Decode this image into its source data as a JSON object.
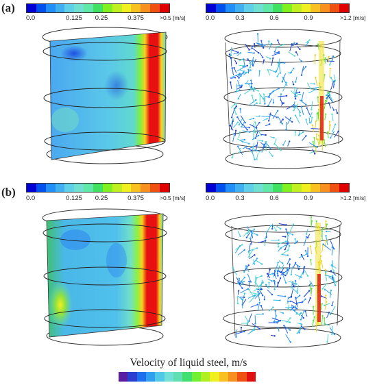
{
  "panels": [
    {
      "label": "(a)",
      "contour_scale": {
        "ticks": [
          "0.0",
          "0.125",
          "0.25",
          "0.375"
        ],
        "max_label": ">0.5",
        "unit": "[m/s]"
      },
      "vector_scale": {
        "ticks": [
          "0.0",
          "0.3",
          "0.6",
          "0.9"
        ],
        "max_label": ">1.2",
        "unit": "[m/s]"
      }
    },
    {
      "label": "(b)",
      "contour_scale": {
        "ticks": [
          "0.0",
          "0.125",
          "0.25",
          "0.375"
        ],
        "max_label": ">0.5",
        "unit": "[m/s]"
      },
      "vector_scale": {
        "ticks": [
          "0.0",
          "0.3",
          "0.6",
          "0.9"
        ],
        "max_label": ">1.2",
        "unit": "[m/s]"
      }
    }
  ],
  "colormap": [
    "#0000d4",
    "#0050f0",
    "#2090f8",
    "#40b0f0",
    "#60d0e8",
    "#70e0d0",
    "#60e8a8",
    "#40e060",
    "#80f020",
    "#c0f020",
    "#f0f020",
    "#f8c020",
    "#f89020",
    "#f05010",
    "#e00000"
  ],
  "legend": {
    "caption": "Velocity of liquid steel, m/s",
    "colors": [
      "#5a1fa0",
      "#2d3fd0",
      "#1e6ef0",
      "#2fa0f0",
      "#50c8e8",
      "#70e0d8",
      "#60e0b0",
      "#40e070",
      "#70f030",
      "#b0f020",
      "#f0f020",
      "#f8c020",
      "#f89020",
      "#f05010",
      "#e01010"
    ]
  }
}
